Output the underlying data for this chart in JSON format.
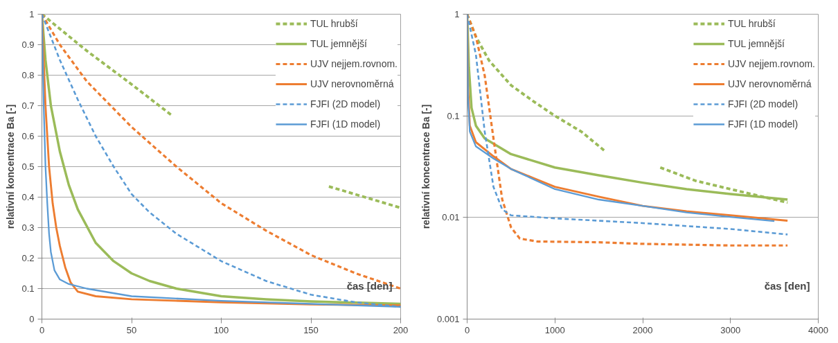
{
  "chart_data": [
    {
      "type": "line",
      "xlabel": "čas [den]",
      "ylabel": "relativní koncentrace Ba [-]",
      "xlim": [
        0,
        200
      ],
      "ylim": [
        0,
        1
      ],
      "xticks": [
        0,
        50,
        100,
        150,
        200
      ],
      "yticks": [
        0,
        0.1,
        0.2,
        0.3,
        0.4,
        0.5,
        0.6,
        0.7,
        0.8,
        0.9,
        1
      ],
      "grid": "y",
      "legend": "top right",
      "series": [
        {
          "name": "TUL hrubší",
          "color": "#9bbb59",
          "line_style": "dashed",
          "x": [
            0,
            25,
            50,
            72,
            75,
            160,
            180,
            200
          ],
          "values": [
            1,
            0.88,
            0.77,
            0.67,
            null,
            0.435,
            0.4,
            0.365
          ]
        },
        {
          "name": "TUL jemnější",
          "color": "#9bbb59",
          "line_style": "solid",
          "x": [
            0,
            2,
            5,
            10,
            15,
            20,
            30,
            40,
            50,
            60,
            75,
            100,
            125,
            150,
            200
          ],
          "values": [
            1,
            0.85,
            0.7,
            0.55,
            0.44,
            0.36,
            0.25,
            0.19,
            0.15,
            0.125,
            0.1,
            0.075,
            0.065,
            0.058,
            0.05
          ]
        },
        {
          "name": "UJV nejjem.rovnom.",
          "color": "#ed7d31",
          "line_style": "dashed",
          "x": [
            0,
            10,
            25,
            50,
            75,
            100,
            125,
            150,
            175,
            200
          ],
          "values": [
            1,
            0.9,
            0.78,
            0.63,
            0.5,
            0.38,
            0.29,
            0.21,
            0.15,
            0.1
          ]
        },
        {
          "name": "UJV nerovnoměrná",
          "color": "#ed7d31",
          "line_style": "solid",
          "x": [
            0,
            2,
            4,
            6,
            8,
            10,
            13,
            16,
            20,
            30,
            50,
            100,
            150,
            200
          ],
          "values": [
            1,
            0.7,
            0.5,
            0.38,
            0.3,
            0.24,
            0.17,
            0.12,
            0.09,
            0.075,
            0.065,
            0.055,
            0.048,
            0.045
          ]
        },
        {
          "name": "FJFI (2D model)",
          "color": "#5b9bd5",
          "line_style": "dashed",
          "x": [
            0,
            10,
            20,
            30,
            40,
            50,
            60,
            75,
            100,
            125,
            150,
            175,
            200
          ],
          "values": [
            1,
            0.85,
            0.72,
            0.6,
            0.5,
            0.41,
            0.35,
            0.28,
            0.19,
            0.125,
            0.08,
            0.055,
            0.04
          ]
        },
        {
          "name": "FJFI (1D model)",
          "color": "#5b9bd5",
          "line_style": "solid",
          "x": [
            0,
            1,
            2,
            3,
            4,
            5,
            7,
            10,
            15,
            25,
            50,
            100,
            150,
            200
          ],
          "values": [
            1,
            0.7,
            0.5,
            0.38,
            0.28,
            0.22,
            0.16,
            0.13,
            0.115,
            0.1,
            0.075,
            0.06,
            0.05,
            0.04
          ]
        }
      ]
    },
    {
      "type": "line",
      "xlabel": "čas [den]",
      "ylabel": "relativní koncentrace Ba [-]",
      "log": true,
      "xlim": [
        0,
        4000
      ],
      "ylim": [
        0.001,
        1
      ],
      "xticks": [
        0,
        1000,
        2000,
        3000,
        4000
      ],
      "yticks": [
        0.001,
        0.01,
        0.1,
        1
      ],
      "grid": "y",
      "legend": "top right",
      "series": [
        {
          "name": "TUL hrubší",
          "color": "#9bbb59",
          "line_style": "dashed",
          "x": [
            0,
            100,
            250,
            500,
            750,
            1000,
            1300,
            1570,
            1700,
            2200,
            2600,
            3000,
            3650
          ],
          "values": [
            1,
            0.6,
            0.35,
            0.2,
            0.14,
            0.1,
            0.07,
            0.045,
            null,
            0.031,
            0.023,
            0.019,
            0.014
          ]
        },
        {
          "name": "TUL jemnější",
          "color": "#9bbb59",
          "line_style": "solid",
          "x": [
            0,
            20,
            50,
            100,
            200,
            500,
            1000,
            1500,
            2000,
            2500,
            3000,
            3650
          ],
          "values": [
            1,
            0.3,
            0.12,
            0.08,
            0.06,
            0.042,
            0.031,
            0.026,
            0.022,
            0.019,
            0.017,
            0.015
          ]
        },
        {
          "name": "UJV nejjem.rovnom.",
          "color": "#ed7d31",
          "line_style": "dashed",
          "x": [
            0,
            100,
            200,
            300,
            400,
            500,
            600,
            800,
            1500,
            2000,
            3000,
            3650
          ],
          "values": [
            1,
            0.6,
            0.25,
            0.06,
            0.015,
            0.008,
            0.0062,
            0.0058,
            0.0057,
            0.0055,
            0.0053,
            0.0053
          ]
        },
        {
          "name": "UJV nerovnoměrná",
          "color": "#ed7d31",
          "line_style": "solid",
          "x": [
            0,
            10,
            30,
            100,
            300,
            500,
            1000,
            1500,
            2000,
            2500,
            3000,
            3650
          ],
          "values": [
            1,
            0.2,
            0.08,
            0.055,
            0.04,
            0.03,
            0.02,
            0.016,
            0.013,
            0.0115,
            0.0105,
            0.0093
          ]
        },
        {
          "name": "FJFI (2D model)",
          "color": "#5b9bd5",
          "line_style": "dashed",
          "x": [
            0,
            100,
            200,
            300,
            400,
            500,
            1000,
            2000,
            3000,
            3650
          ],
          "values": [
            1,
            0.4,
            0.07,
            0.02,
            0.012,
            0.0105,
            0.0098,
            0.0088,
            0.0077,
            0.0068
          ]
        },
        {
          "name": "FJFI (1D model)",
          "color": "#5b9bd5",
          "line_style": "solid",
          "x": [
            0,
            10,
            30,
            100,
            300,
            500,
            1000,
            1500,
            2000,
            2500,
            3000,
            3500
          ],
          "values": [
            1,
            0.15,
            0.07,
            0.05,
            0.038,
            0.03,
            0.019,
            0.015,
            0.013,
            0.0112,
            0.0101,
            0.0092
          ]
        }
      ]
    }
  ]
}
